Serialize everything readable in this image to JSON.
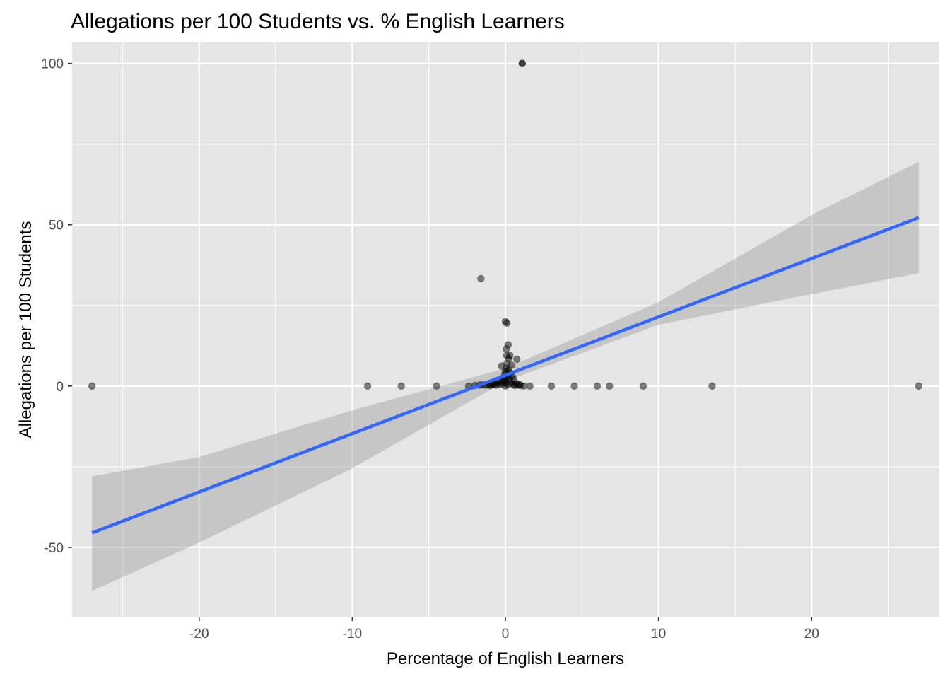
{
  "chart_data": {
    "type": "scatter",
    "title": "Allegations per 100 Students vs. % English Learners",
    "xlabel": "Percentage of English Learners",
    "ylabel": "Allegations per 100 Students",
    "xlim": [
      -28.3,
      28.3
    ],
    "ylim": [
      -71.5,
      106.5
    ],
    "x_ticks": [
      -20,
      -10,
      0,
      10,
      20
    ],
    "x_tick_labels": [
      "-20",
      "-10",
      "0",
      "10",
      "20"
    ],
    "y_ticks": [
      -50,
      0,
      50,
      100
    ],
    "y_tick_labels": [
      "-50",
      "0",
      "50",
      "100"
    ],
    "grid": true,
    "legend": "none",
    "point_color": "#000000",
    "point_opacity": 0.5,
    "panel_background": "#e5e5e5",
    "points": [
      {
        "x": -27,
        "y": 0
      },
      {
        "x": -9,
        "y": 0
      },
      {
        "x": -6.8,
        "y": 0
      },
      {
        "x": -4.5,
        "y": 0
      },
      {
        "x": -2.4,
        "y": 0
      },
      {
        "x": -2.0,
        "y": 0.2
      },
      {
        "x": -1.7,
        "y": 0.3
      },
      {
        "x": -1.5,
        "y": 0.4
      },
      {
        "x": -1.3,
        "y": 0.3
      },
      {
        "x": -1.1,
        "y": 0.5
      },
      {
        "x": -1.0,
        "y": 0.2
      },
      {
        "x": -0.9,
        "y": 0.6
      },
      {
        "x": -0.8,
        "y": 0.4
      },
      {
        "x": -0.7,
        "y": 0.8
      },
      {
        "x": -0.6,
        "y": 0.3
      },
      {
        "x": -0.5,
        "y": 1.0
      },
      {
        "x": -0.4,
        "y": 0.5
      },
      {
        "x": -0.3,
        "y": 1.2
      },
      {
        "x": -0.25,
        "y": 6.2
      },
      {
        "x": -0.2,
        "y": 0.7
      },
      {
        "x": -0.15,
        "y": 2.5
      },
      {
        "x": -0.1,
        "y": 1.5
      },
      {
        "x": -0.05,
        "y": 3.5
      },
      {
        "x": 0,
        "y": 0
      },
      {
        "x": 0,
        "y": 2.0
      },
      {
        "x": 0,
        "y": 4.5
      },
      {
        "x": 0.03,
        "y": 1.0
      },
      {
        "x": 0.05,
        "y": 5.5
      },
      {
        "x": 0.06,
        "y": 11.5
      },
      {
        "x": 0.08,
        "y": 9.5
      },
      {
        "x": 0.1,
        "y": 7.0
      },
      {
        "x": 0.12,
        "y": 3.0
      },
      {
        "x": 0.15,
        "y": 0.5
      },
      {
        "x": 0.18,
        "y": 12.8
      },
      {
        "x": 0.2,
        "y": 5.0
      },
      {
        "x": 0.22,
        "y": 8.5
      },
      {
        "x": 0.25,
        "y": 2.0
      },
      {
        "x": 0.3,
        "y": 9.5
      },
      {
        "x": 0.32,
        "y": 4.0
      },
      {
        "x": 0.35,
        "y": 1.0
      },
      {
        "x": 0.4,
        "y": 6.5
      },
      {
        "x": 0.45,
        "y": 3.0
      },
      {
        "x": 0.5,
        "y": 0.5
      },
      {
        "x": 0.55,
        "y": 2.0
      },
      {
        "x": 0.6,
        "y": 0.2
      },
      {
        "x": 0.7,
        "y": 0.8
      },
      {
        "x": 0.75,
        "y": 8.3
      },
      {
        "x": 0.8,
        "y": 0.3
      },
      {
        "x": 0.9,
        "y": 0.5
      },
      {
        "x": 1.0,
        "y": 0.2
      },
      {
        "x": 1.2,
        "y": 0
      },
      {
        "x": 0,
        "y": 20.0
      },
      {
        "x": 0.1,
        "y": 19.5
      },
      {
        "x": -1.6,
        "y": 33.3
      },
      {
        "x": 1.1,
        "y": 100
      },
      {
        "x": 1.1,
        "y": 100
      },
      {
        "x": 1.6,
        "y": 0
      },
      {
        "x": 3.0,
        "y": 0
      },
      {
        "x": 4.5,
        "y": 0
      },
      {
        "x": 6.0,
        "y": 0
      },
      {
        "x": 6.8,
        "y": 0
      },
      {
        "x": 9.0,
        "y": 0
      },
      {
        "x": 13.5,
        "y": 0
      },
      {
        "x": 27,
        "y": 0
      }
    ],
    "fit_line": {
      "method": "lm",
      "color": "#3366ff",
      "x": [
        -27,
        27
      ],
      "y": [
        -45.5,
        52.2
      ]
    },
    "confidence_band": {
      "color": "#999999",
      "opacity": 0.4,
      "x": [
        -27,
        -20,
        -10,
        0,
        10,
        20,
        27
      ],
      "lower": [
        -63.5,
        -48.5,
        -25.5,
        1.5,
        19.0,
        28.5,
        35.0
      ],
      "upper": [
        -28.0,
        -22.0,
        -7.5,
        5.5,
        26.0,
        53.0,
        69.5
      ]
    }
  }
}
